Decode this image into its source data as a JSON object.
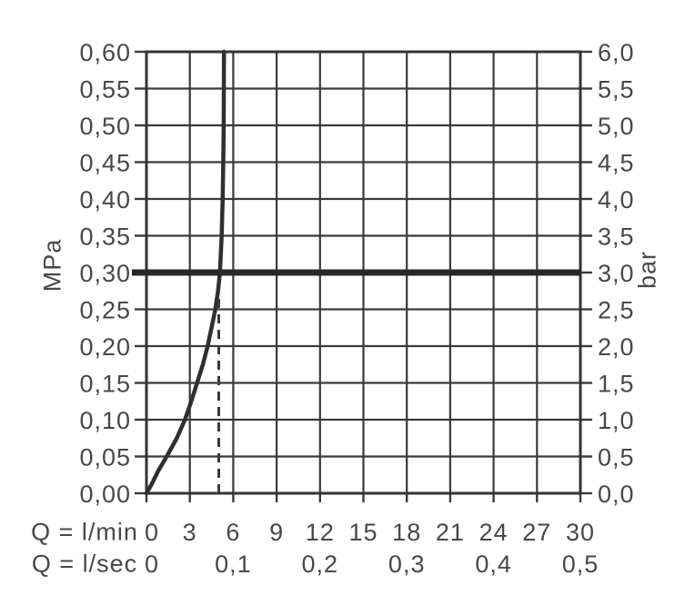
{
  "chart_data": {
    "type": "line",
    "title": "",
    "grid": true,
    "x_axis": {
      "primary_label": "Q = l/min",
      "secondary_label": "Q = l/sec",
      "range": [
        0,
        30
      ],
      "grid_step": 3,
      "primary_ticks": [
        {
          "v": 0,
          "label": "0"
        },
        {
          "v": 3,
          "label": "3"
        },
        {
          "v": 6,
          "label": "6"
        },
        {
          "v": 9,
          "label": "9"
        },
        {
          "v": 12,
          "label": "12"
        },
        {
          "v": 15,
          "label": "15"
        },
        {
          "v": 18,
          "label": "18"
        },
        {
          "v": 21,
          "label": "21"
        },
        {
          "v": 24,
          "label": "24"
        },
        {
          "v": 27,
          "label": "27"
        },
        {
          "v": 30,
          "label": "30"
        }
      ],
      "secondary_ticks": [
        {
          "v": 0,
          "label": "0"
        },
        {
          "v": 6,
          "label": "0,1"
        },
        {
          "v": 12,
          "label": "0,2"
        },
        {
          "v": 18,
          "label": "0,3"
        },
        {
          "v": 24,
          "label": "0,4"
        },
        {
          "v": 30,
          "label": "0,5"
        }
      ]
    },
    "y_axis_left": {
      "unit": "MPa",
      "range": [
        0,
        0.6
      ],
      "grid_step": 0.05,
      "ticks": [
        {
          "v": 0.6,
          "label": "0,60"
        },
        {
          "v": 0.55,
          "label": "0,55"
        },
        {
          "v": 0.5,
          "label": "0,50"
        },
        {
          "v": 0.45,
          "label": "0,45"
        },
        {
          "v": 0.4,
          "label": "0,40"
        },
        {
          "v": 0.35,
          "label": "0,35"
        },
        {
          "v": 0.3,
          "label": "0,30"
        },
        {
          "v": 0.25,
          "label": "0,25"
        },
        {
          "v": 0.2,
          "label": "0,20"
        },
        {
          "v": 0.15,
          "label": "0,15"
        },
        {
          "v": 0.1,
          "label": "0,10"
        },
        {
          "v": 0.05,
          "label": "0,05"
        },
        {
          "v": 0.0,
          "label": "0,00"
        }
      ]
    },
    "y_axis_right": {
      "unit": "bar",
      "range": [
        0,
        6
      ],
      "ticks": [
        {
          "v": 6.0,
          "label": "6,0"
        },
        {
          "v": 5.5,
          "label": "5,5"
        },
        {
          "v": 5.0,
          "label": "5,0"
        },
        {
          "v": 4.5,
          "label": "4,5"
        },
        {
          "v": 4.0,
          "label": "4,0"
        },
        {
          "v": 3.5,
          "label": "3,5"
        },
        {
          "v": 3.0,
          "label": "3,0"
        },
        {
          "v": 2.5,
          "label": "2,5"
        },
        {
          "v": 2.0,
          "label": "2,0"
        },
        {
          "v": 1.5,
          "label": "1,5"
        },
        {
          "v": 1.0,
          "label": "1,0"
        },
        {
          "v": 0.5,
          "label": "0,5"
        },
        {
          "v": 0.0,
          "label": "0,0"
        }
      ]
    },
    "series": [
      {
        "name": "flow-curve",
        "type": "curve",
        "points_lmin_mpa": [
          [
            0,
            0
          ],
          [
            0.35,
            0.012
          ],
          [
            0.8,
            0.03
          ],
          [
            1.4,
            0.05
          ],
          [
            2.1,
            0.075
          ],
          [
            2.66,
            0.1
          ],
          [
            3.1,
            0.125
          ],
          [
            3.5,
            0.15
          ],
          [
            3.9,
            0.175
          ],
          [
            4.23,
            0.2
          ],
          [
            4.5,
            0.225
          ],
          [
            4.76,
            0.25
          ],
          [
            4.95,
            0.275
          ],
          [
            5.08,
            0.3
          ],
          [
            5.2,
            0.35
          ],
          [
            5.27,
            0.4
          ],
          [
            5.31,
            0.45
          ],
          [
            5.34,
            0.5
          ],
          [
            5.35,
            0.55
          ],
          [
            5.36,
            0.6
          ]
        ]
      },
      {
        "name": "pressure-limit-line",
        "type": "hline",
        "y_mpa": 0.3,
        "y_bar": 3.0
      },
      {
        "name": "reference-flow-dashed-line",
        "type": "vline-dashed",
        "x_lmin": 5.0,
        "from_mpa": 0.0,
        "to_mpa": 0.272
      }
    ],
    "colors": {
      "background": "#ffffff",
      "grid": "#3a3a3c",
      "border": "#333335",
      "tick": "#3a3a3c",
      "label": "#48484a",
      "curve": "#2f2f31",
      "limit_line": "#28282a",
      "dashed": "#3a3a3c"
    }
  }
}
